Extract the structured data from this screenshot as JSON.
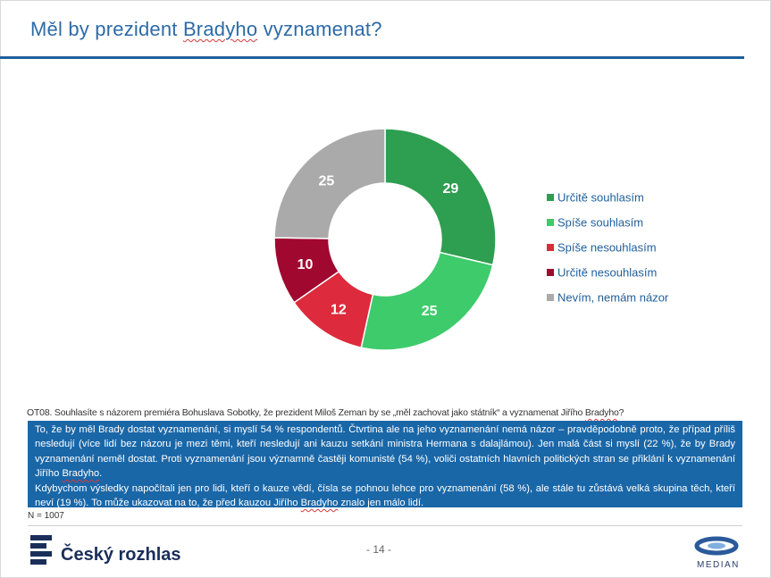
{
  "title": {
    "prefix": "Měl by prezident ",
    "name": "Bradyho",
    "suffix": " vyznamenat?"
  },
  "chart_data": {
    "type": "pie",
    "categories": [
      "Určitě souhlasím",
      "Spíše souhlasím",
      "Spíše nesouhlasím",
      "Určitě nesouhlasím",
      "Nevím, nemám názor"
    ],
    "values": [
      29,
      25,
      12,
      10,
      25
    ],
    "colors": [
      "#2e9e50",
      "#3ecb6b",
      "#dd2a3c",
      "#a0082f",
      "#aaaaaa"
    ],
    "style": "donut",
    "legend_position": "right"
  },
  "question": {
    "prefix": "OT08. Souhlasíte s názorem premiéra Bohuslava Sobotky, že prezident Miloš Zeman by se „měl zachovat jako státník“ a vyznamenat Jiřího ",
    "name": "Bradyho",
    "suffix": "?"
  },
  "summary": {
    "p1_prefix": "To, že by měl Brady dostat vyznamenání, si myslí 54 % respondentů. Čtvrtina ale na jeho vyznamenání nemá názor – pravděpodobně proto, že případ příliš nesledují (více lidí bez názoru je mezi těmi, kteří nesledují ani kauzu setkání ministra Hermana s dalajlámou). Jen malá část si myslí (22 %), že by Brady vyznamenání neměl dostat. Proti vyznamenání jsou významně častěji komunisté (54 %), voliči ostatních hlavních politických stran se přiklání k vyznamenání Jiřího ",
    "p1_name": "Bradyho",
    "p1_suffix": ".",
    "p2_prefix": "Kdybychom výsledky napočítali jen pro lidi, kteří o kauze vědí, čísla se pohnou lehce pro vyznamenání (58 %), ale stále tu zůstává velká skupina těch, kteří neví (19 %). To může ukazovat na to, že před kauzou Jiřího ",
    "p2_name": "Bradyho",
    "p2_suffix": " znalo jen málo lidí."
  },
  "sample_size": "N = 1007",
  "page_number": "- 14 -",
  "logos": {
    "left": "Český rozhlas",
    "right": "MEDIAN",
    "left_color": "#1a2e5a",
    "right_color": "#2a5a9a"
  }
}
